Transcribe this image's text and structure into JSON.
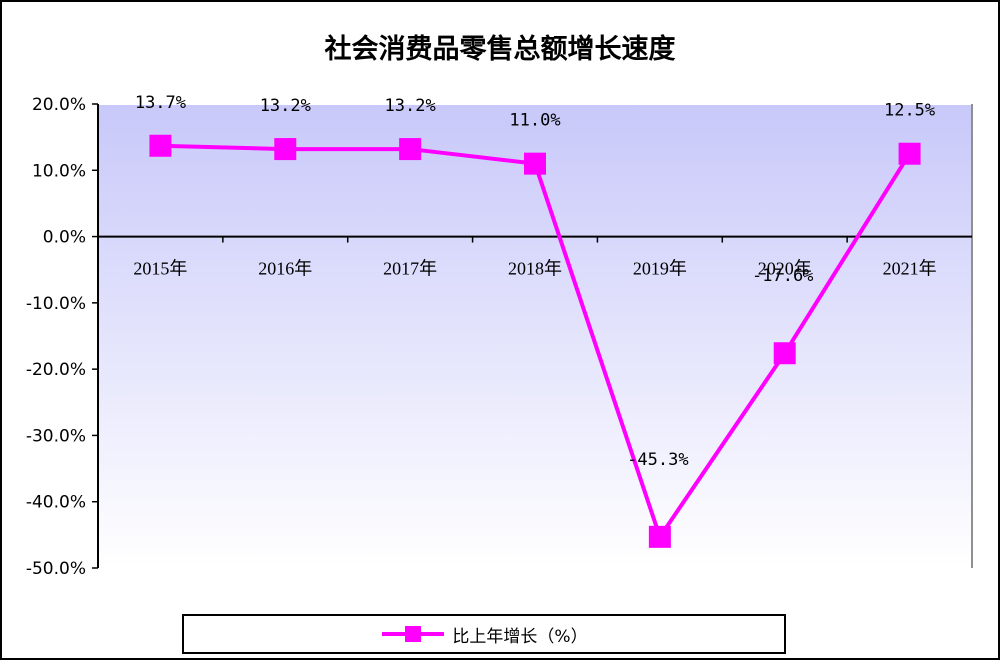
{
  "chart_data": {
    "type": "line",
    "title": "社会消费品零售总额增长速度",
    "categories": [
      "2015年",
      "2016年",
      "2017年",
      "2018年",
      "2019年",
      "2020年",
      "2021年"
    ],
    "series": [
      {
        "name": "比上年增长（%）",
        "values": [
          13.7,
          13.2,
          13.2,
          11.0,
          -45.3,
          -17.6,
          12.5
        ],
        "labels": [
          "13.7%",
          "13.2%",
          "13.2%",
          "11.0%",
          "-45.3%",
          "-17.6%",
          "12.5%"
        ],
        "color": "#ff00ff"
      }
    ],
    "ylim": [
      -50,
      20
    ],
    "yticks": [
      20,
      10,
      0,
      -10,
      -20,
      -30,
      -40,
      -50
    ],
    "ytick_labels": [
      "20.0%",
      "10.0%",
      "0.0%",
      "-10.0%",
      "-20.0%",
      "-30.0%",
      "-40.0%",
      "-50.0%"
    ],
    "legend_position": "bottom",
    "grid": false,
    "background_gradient": [
      "#c8c8fa",
      "#ffffff"
    ]
  }
}
